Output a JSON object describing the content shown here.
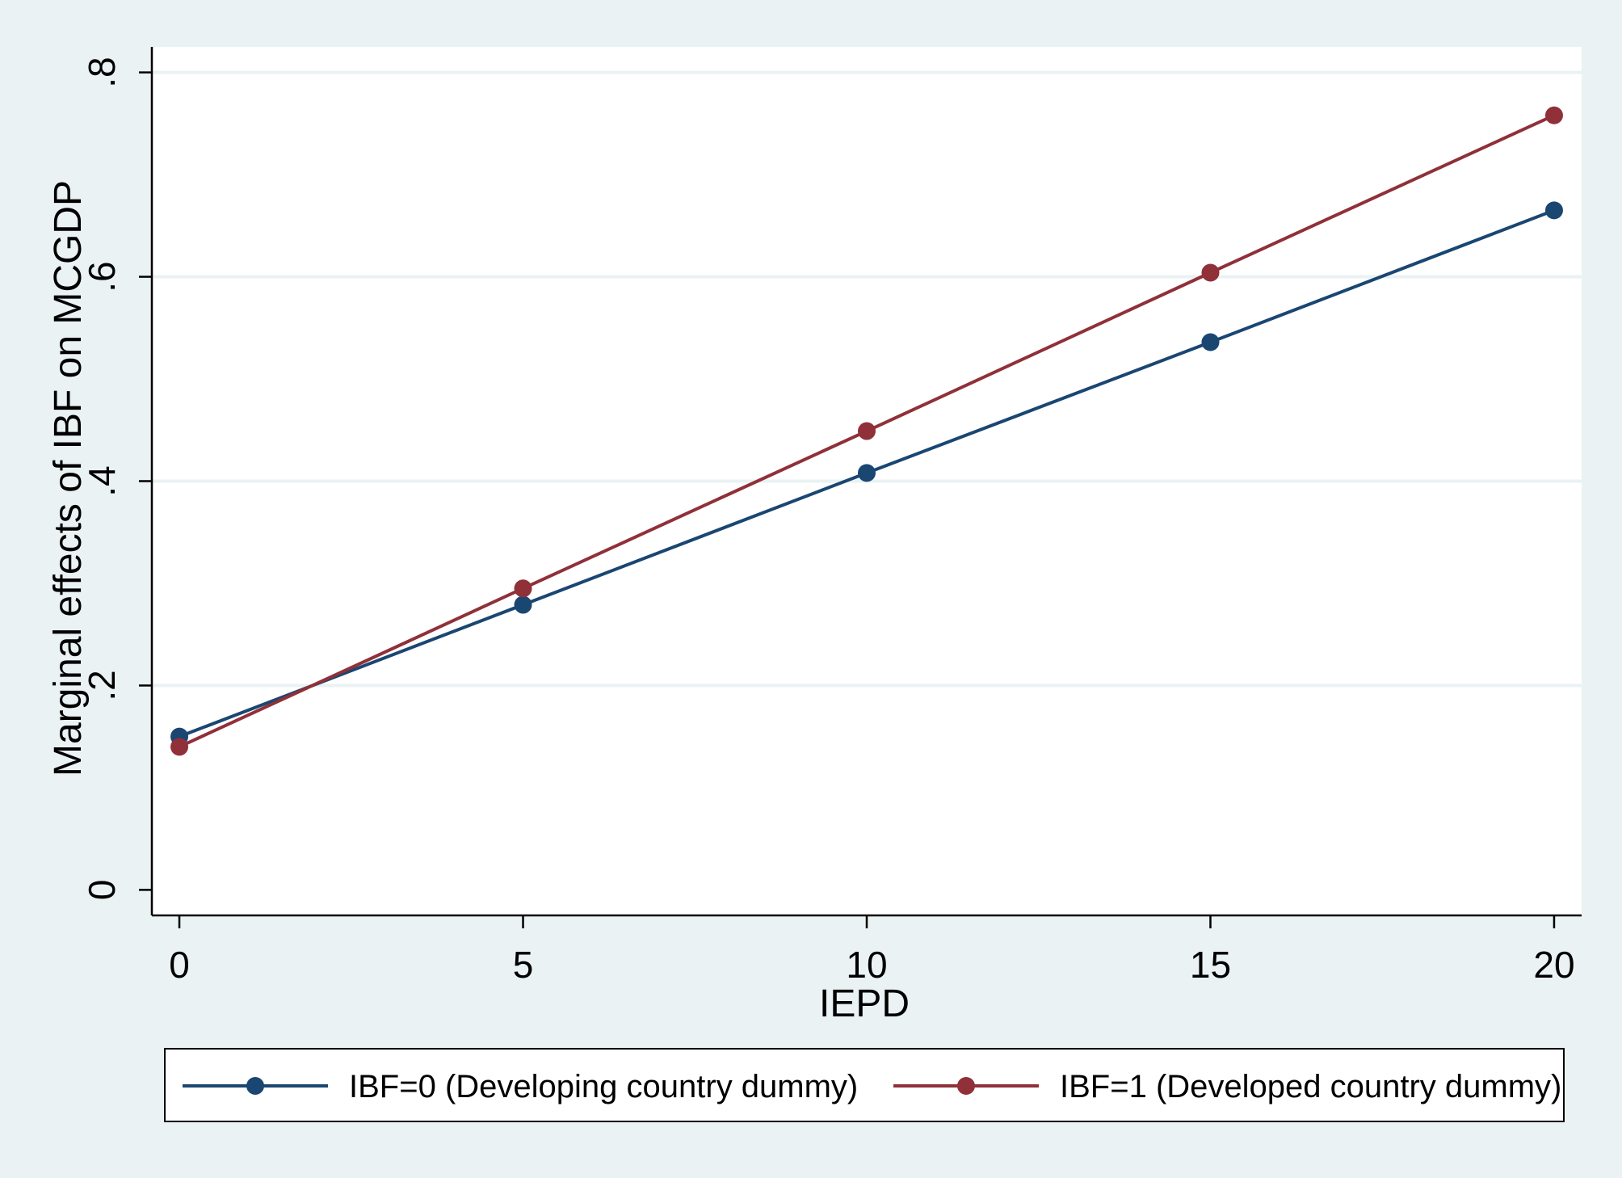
{
  "chart_data": {
    "type": "line",
    "xlabel": "IEPD",
    "ylabel": "Marginal effects of IBF on MCGDP",
    "x": [
      0,
      5,
      10,
      15,
      20
    ],
    "xticks": [
      0,
      5,
      10,
      15,
      20
    ],
    "yticks": [
      0,
      0.2,
      0.4,
      0.6,
      0.8
    ],
    "ytick_labels": [
      "0",
      ".2",
      ".4",
      ".6",
      ".8"
    ],
    "xlim": [
      -0.4,
      20.4
    ],
    "ylim": [
      -0.025,
      0.825
    ],
    "grid": "horizontal",
    "legend_position": "bottom",
    "series": [
      {
        "name": "IBF=0 (Developing country dummy)",
        "color": "#1a4672",
        "values": [
          0.15,
          0.279,
          0.408,
          0.536,
          0.665
        ]
      },
      {
        "name": "IBF=1 (Developed country dummy)",
        "color": "#903039",
        "values": [
          0.14,
          0.295,
          0.449,
          0.604,
          0.758
        ]
      }
    ]
  }
}
